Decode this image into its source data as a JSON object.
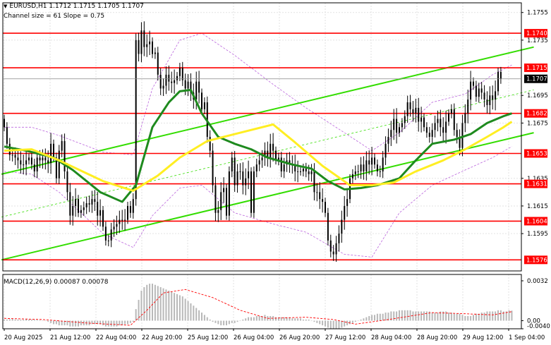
{
  "header": {
    "symbol_line": "EURUSD,H1  1.1712 1.1715 1.1705 1.1707",
    "channel_line": "Channel size = 61 Slope = 0.75"
  },
  "macd_label": "MACD(12,26,9) 0.00087 0.00078",
  "colors": {
    "level_line": "#ff0000",
    "label_bg": "#ff0000",
    "channel": "#33dd00",
    "ma_slow": "#ffee22",
    "ma_fast": "#1e8a1e",
    "envelope": "#bb66dd",
    "candle": "#000000",
    "macd_hist": "#b8b8b8",
    "macd_signal": "#ff0000"
  },
  "chart_data": [
    {
      "type": "candlestick",
      "symbol": "EURUSD",
      "timeframe": "H1",
      "ylim": [
        1.1568,
        1.1762
      ],
      "price_axis_ticks": [
        "1.1755",
        "1.1735",
        "1.1695",
        "1.1675",
        "1.1635",
        "1.1615",
        "1.1595"
      ],
      "price_levels": [
        "1.1740",
        "1.1715",
        "1.1682",
        "1.1653",
        "1.1631",
        "1.1604",
        "1.1576"
      ],
      "current_price": "1.1707",
      "grid": true,
      "x_tick_labels": [
        "20 Aug 2025",
        "21 Aug 12:00",
        "22 Aug 04:00",
        "22 Aug 20:00",
        "25 Aug 12:00",
        "26 Aug 04:00",
        "26 Aug 20:00",
        "27 Aug 12:00",
        "28 Aug 04:00",
        "28 Aug 20:00",
        "29 Aug 12:00",
        "1 Sep 04:00"
      ],
      "closes": [
        1.1672,
        1.166,
        1.1652,
        1.1652,
        1.165,
        1.1648,
        1.1645,
        1.1645,
        1.1648,
        1.165,
        1.1645,
        1.164,
        1.165,
        1.1648,
        1.165,
        1.1648,
        1.1646,
        1.166,
        1.165,
        1.1635,
        1.1655,
        1.1662,
        1.164,
        1.1625,
        1.1608,
        1.1615,
        1.162,
        1.161,
        1.1612,
        1.1614,
        1.1617,
        1.1616,
        1.162,
        1.1618,
        1.1608,
        1.1612,
        1.16,
        1.159,
        1.159,
        1.1598,
        1.16,
        1.1602,
        1.1605,
        1.1605,
        1.1605,
        1.1615,
        1.161,
        1.162,
        1.1735,
        1.1725,
        1.1742,
        1.173,
        1.1732,
        1.1734,
        1.1725,
        1.1726,
        1.171,
        1.17,
        1.1702,
        1.171,
        1.1705,
        1.1704,
        1.1706,
        1.1709,
        1.1715,
        1.1706,
        1.17,
        1.1705,
        1.1697,
        1.1692,
        1.1705,
        1.1697,
        1.1685,
        1.169,
        1.1665,
        1.1655,
        1.163,
        1.161,
        1.1612,
        1.1625,
        1.1628,
        1.1608,
        1.164,
        1.165,
        1.163,
        1.164,
        1.164,
        1.163,
        1.1635,
        1.164,
        1.161,
        1.164,
        1.1645,
        1.1648,
        1.165,
        1.1655,
        1.165,
        1.166,
        1.1655,
        1.1648,
        1.165,
        1.164,
        1.1645,
        1.1648,
        1.1645,
        1.1645,
        1.164,
        1.164,
        1.164,
        1.1642,
        1.164,
        1.1638,
        1.164,
        1.1625,
        1.1625,
        1.162,
        1.1618,
        1.161,
        1.159,
        1.1582,
        1.158,
        1.1588,
        1.1595,
        1.1605,
        1.1615,
        1.162,
        1.1635,
        1.1638,
        1.164,
        1.164,
        1.1645,
        1.164,
        1.1648,
        1.1645,
        1.165,
        1.1645,
        1.164,
        1.164,
        1.165,
        1.166,
        1.1665,
        1.167,
        1.1678,
        1.1668,
        1.1672,
        1.1675,
        1.168,
        1.169,
        1.1685,
        1.1682,
        1.1686,
        1.1676,
        1.1679,
        1.1672,
        1.1668,
        1.1665,
        1.167,
        1.1675,
        1.1678,
        1.1672,
        1.1668,
        1.1676,
        1.1682,
        1.1685,
        1.167,
        1.1665,
        1.1657,
        1.1675,
        1.1682,
        1.1692,
        1.1705,
        1.1702,
        1.1694,
        1.17,
        1.1697,
        1.1692,
        1.1688,
        1.1695,
        1.1692,
        1.1698,
        1.1712,
        1.1707
      ],
      "candle_bodies": "every candle drawn with a thin open/close body and high-low wick",
      "series": [
        {
          "name": "",
          "role": "fast moving average",
          "values": [
            [
              0,
              1.1658
            ],
            [
              8,
              1.1655
            ],
            [
              18,
              1.165
            ],
            [
              25,
              1.1641
            ],
            [
              35,
              1.1625
            ],
            [
              43,
              1.1618
            ],
            [
              48,
              1.163
            ],
            [
              54,
              1.1672
            ],
            [
              60,
              1.169
            ],
            [
              64,
              1.1698
            ],
            [
              68,
              1.1699
            ],
            [
              72,
              1.1682
            ],
            [
              78,
              1.1665
            ],
            [
              84,
              1.166
            ],
            [
              90,
              1.1656
            ],
            [
              96,
              1.165
            ],
            [
              105,
              1.1645
            ],
            [
              112,
              1.1642
            ],
            [
              118,
              1.1633
            ],
            [
              124,
              1.1627
            ],
            [
              130,
              1.1628
            ],
            [
              136,
              1.163
            ],
            [
              144,
              1.1635
            ],
            [
              150,
              1.1648
            ],
            [
              156,
              1.166
            ],
            [
              164,
              1.1663
            ],
            [
              170,
              1.1667
            ],
            [
              176,
              1.1675
            ],
            [
              182,
              1.168
            ],
            [
              185,
              1.1682
            ]
          ]
        },
        {
          "name": "",
          "role": "slow moving average",
          "values": [
            [
              0,
              1.1655
            ],
            [
              10,
              1.1656
            ],
            [
              20,
              1.1648
            ],
            [
              36,
              1.1633
            ],
            [
              47,
              1.1626
            ],
            [
              56,
              1.1637
            ],
            [
              64,
              1.165
            ],
            [
              74,
              1.1662
            ],
            [
              84,
              1.1667
            ],
            [
              98,
              1.1674
            ],
            [
              106,
              1.1661
            ],
            [
              116,
              1.1644
            ],
            [
              126,
              1.163
            ],
            [
              134,
              1.163
            ],
            [
              142,
              1.1632
            ],
            [
              150,
              1.164
            ],
            [
              160,
              1.1648
            ],
            [
              168,
              1.1656
            ],
            [
              176,
              1.1665
            ],
            [
              182,
              1.1672
            ],
            [
              185,
              1.1676
            ]
          ]
        },
        {
          "name": "",
          "role": "envelope upper",
          "values": [
            [
              0,
              1.1672
            ],
            [
              10,
              1.1672
            ],
            [
              20,
              1.1666
            ],
            [
              36,
              1.1654
            ],
            [
              47,
              1.1652
            ],
            [
              54,
              1.17
            ],
            [
              64,
              1.1735
            ],
            [
              72,
              1.174
            ],
            [
              84,
              1.1724
            ],
            [
              98,
              1.1703
            ],
            [
              110,
              1.1686
            ],
            [
              124,
              1.1668
            ],
            [
              134,
              1.1655
            ],
            [
              144,
              1.1668
            ],
            [
              156,
              1.169
            ],
            [
              168,
              1.1696
            ],
            [
              178,
              1.171
            ],
            [
              185,
              1.1717
            ]
          ]
        },
        {
          "name": "",
          "role": "envelope lower",
          "values": [
            [
              0,
              1.164
            ],
            [
              10,
              1.1638
            ],
            [
              20,
              1.1625
            ],
            [
              36,
              1.1595
            ],
            [
              47,
              1.1585
            ],
            [
              54,
              1.1608
            ],
            [
              64,
              1.1628
            ],
            [
              72,
              1.163
            ],
            [
              84,
              1.161
            ],
            [
              98,
              1.1602
            ],
            [
              110,
              1.1596
            ],
            [
              124,
              1.158
            ],
            [
              134,
              1.1578
            ],
            [
              144,
              1.161
            ],
            [
              156,
              1.163
            ],
            [
              168,
              1.1641
            ],
            [
              178,
              1.165
            ],
            [
              185,
              1.1658
            ]
          ]
        }
      ],
      "channel": {
        "size": 61,
        "slope": 0.75,
        "upper_line": [
          [
            -1,
            1.1638
          ],
          [
            193,
            1.173
          ]
        ],
        "middle_line": [
          [
            -1,
            1.1607
          ],
          [
            193,
            1.1699
          ]
        ],
        "lower_line": [
          [
            -1,
            1.1576
          ],
          [
            193,
            1.1668
          ]
        ]
      }
    },
    {
      "type": "bar",
      "title": "MACD(12,26,9) 0.00087 0.00078",
      "ylim": [
        -0.0007,
        0.004
      ],
      "y_tick_labels": [
        "0.0032",
        "0.00",
        "-0.0040"
      ],
      "histogram": [
        0.0001,
        0.0001,
        0.00012,
        0.00015,
        0.0001,
        0.0001,
        8e-05,
        8e-05,
        0.00012,
        0.0001,
        0.0001,
        8e-05,
        6e-05,
        4e-05,
        0.0,
        0.0,
        -0.0001,
        -0.0002,
        -0.0003,
        -0.0003,
        -0.0004,
        -0.0004,
        -0.0004,
        -0.0004,
        -0.0005,
        -0.0005,
        -0.0005,
        -0.0005,
        -0.0004,
        -0.0004,
        -0.0004,
        -0.0004,
        -0.0003,
        -0.0003,
        -0.0003,
        -0.0003,
        -0.0004,
        -0.0005,
        -0.0005,
        -0.0005,
        -0.0005,
        -0.0005,
        -0.0004,
        -0.0004,
        -0.0003,
        -0.0003,
        -0.0002,
        -0.0001,
        0.001,
        0.0018,
        0.0026,
        0.0029,
        0.0031,
        0.0032,
        0.0032,
        0.0031,
        0.003,
        0.0029,
        0.0028,
        0.0027,
        0.0026,
        0.0025,
        0.0024,
        0.0023,
        0.0022,
        0.0021,
        0.0019,
        0.0017,
        0.0015,
        0.0013,
        0.0011,
        0.0009,
        0.0007,
        0.0005,
        0.0003,
        0.0001,
        -0.0001,
        -0.0002,
        -0.0003,
        -0.0004,
        -0.0004,
        -0.0004,
        -0.0003,
        -0.0002,
        -0.0002,
        -0.0001,
        0.0,
        0.0001,
        0.0002,
        0.0003,
        0.0003,
        0.0003,
        0.0004,
        0.0004,
        0.0004,
        0.0005,
        0.0004,
        0.0004,
        0.0004,
        0.0003,
        0.0003,
        0.0003,
        0.0003,
        0.0003,
        0.0003,
        0.0002,
        0.0002,
        0.0002,
        0.0002,
        0.0001,
        0.0001,
        0.0001,
        0.0,
        -0.0001,
        -0.0002,
        -0.0003,
        -0.0004,
        -0.0005,
        -0.0006,
        -0.0007,
        -0.0007,
        -0.0007,
        -0.0007,
        -0.0006,
        -0.0005,
        -0.0004,
        -0.0003,
        -0.0002,
        -0.0001,
        0.0,
        0.0001,
        0.0002,
        0.0003,
        0.0004,
        0.0005,
        0.0005,
        0.0006,
        0.0006,
        0.0006,
        0.0007,
        0.0007,
        0.0008,
        0.0008,
        0.0008,
        0.0009,
        0.0009,
        0.0009,
        0.0009,
        0.0009,
        0.0008,
        0.0008,
        0.0008,
        0.0008,
        0.0008,
        0.0008,
        0.0008,
        0.0007,
        0.0007,
        0.0007,
        0.0008,
        0.0008,
        0.0008,
        0.0007,
        0.0007,
        0.0006,
        0.0006,
        0.0006,
        0.0005,
        0.0004,
        0.0004,
        0.0004,
        0.0005,
        0.0006,
        0.0006,
        0.0007,
        0.0007,
        0.0008,
        0.0008,
        0.0008,
        0.0008,
        0.0009,
        0.0009,
        0.0008,
        0.0008,
        0.0009,
        0.00087
      ],
      "signal": [
        [
          0,
          0.0002
        ],
        [
          14,
          0.0001
        ],
        [
          30,
          -0.0002
        ],
        [
          46,
          -0.0004
        ],
        [
          52,
          0.0009
        ],
        [
          58,
          0.0024
        ],
        [
          66,
          0.0027
        ],
        [
          76,
          0.002
        ],
        [
          86,
          0.0009
        ],
        [
          96,
          0.0002
        ],
        [
          110,
          0.0003
        ],
        [
          120,
          0.0001
        ],
        [
          128,
          -0.0003
        ],
        [
          140,
          0.0001
        ],
        [
          156,
          0.0007
        ],
        [
          168,
          0.0006
        ],
        [
          178,
          0.0005
        ],
        [
          185,
          0.00078
        ]
      ]
    }
  ]
}
